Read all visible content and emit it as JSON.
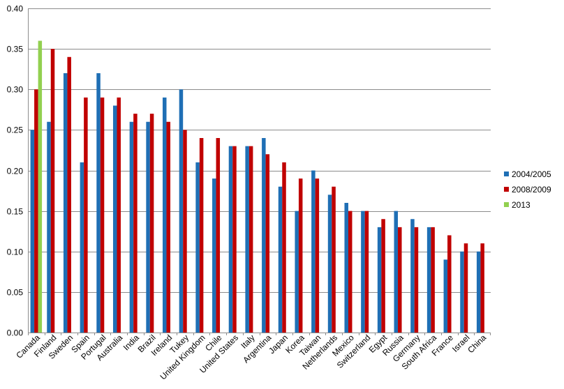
{
  "chart_data": {
    "type": "bar",
    "title": "",
    "xlabel": "",
    "ylabel": "",
    "ylim": [
      0,
      0.4
    ],
    "yticks": [
      "0.00",
      "0.05",
      "0.10",
      "0.15",
      "0.20",
      "0.25",
      "0.30",
      "0.35",
      "0.40"
    ],
    "grid": true,
    "legend_position": "right",
    "categories": [
      "Canada",
      "Finland",
      "Sweden",
      "Spain",
      "Portugal",
      "Australia",
      "India",
      "Brazil",
      "Ireland",
      "Tukey",
      "United Kingdom",
      "Chile",
      "United States",
      "Italy",
      "Argentina",
      "Japan",
      "Korea",
      "Taiwan",
      "Netherlands",
      "Mexico",
      "Switzerland",
      "Egypt",
      "Russia",
      "Germany",
      "South Africa",
      "France",
      "Israel",
      "China"
    ],
    "series": [
      {
        "name": "2004/2005",
        "color": "#1f6fb5",
        "values": [
          0.25,
          0.26,
          0.32,
          0.21,
          0.32,
          0.28,
          0.26,
          0.26,
          0.29,
          0.3,
          0.21,
          0.19,
          0.23,
          0.23,
          0.24,
          0.18,
          0.15,
          0.2,
          0.17,
          0.16,
          0.15,
          0.13,
          0.15,
          0.14,
          0.13,
          0.09,
          0.1,
          0.1
        ]
      },
      {
        "name": "2008/2009",
        "color": "#c00000",
        "values": [
          0.3,
          0.35,
          0.34,
          0.29,
          0.29,
          0.29,
          0.27,
          0.27,
          0.26,
          0.25,
          0.24,
          0.24,
          0.23,
          0.23,
          0.22,
          0.21,
          0.19,
          0.19,
          0.18,
          0.15,
          0.15,
          0.14,
          0.13,
          0.13,
          0.13,
          0.12,
          0.11,
          0.11
        ]
      },
      {
        "name": "2013",
        "color": "#92d050",
        "values": [
          0.36,
          null,
          null,
          null,
          null,
          null,
          null,
          null,
          null,
          null,
          null,
          null,
          null,
          null,
          null,
          null,
          null,
          null,
          null,
          null,
          null,
          null,
          null,
          null,
          null,
          null,
          null,
          null
        ]
      }
    ]
  }
}
